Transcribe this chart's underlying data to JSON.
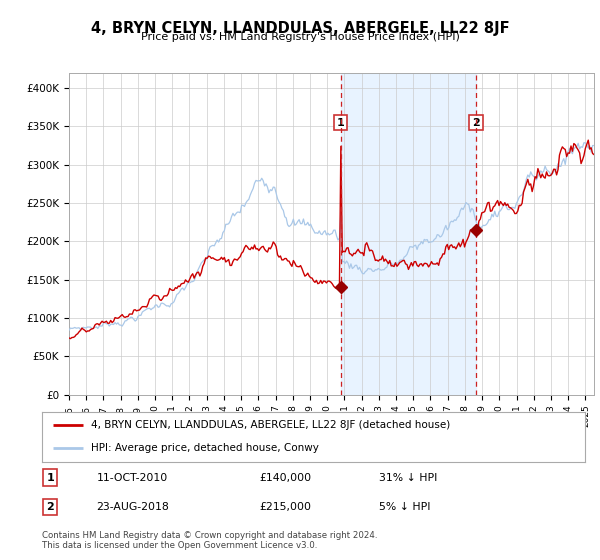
{
  "title": "4, BRYN CELYN, LLANDDULAS, ABERGELE, LL22 8JF",
  "subtitle": "Price paid vs. HM Land Registry's House Price Index (HPI)",
  "ylim": [
    0,
    420000
  ],
  "yticks": [
    0,
    50000,
    100000,
    150000,
    200000,
    250000,
    300000,
    350000,
    400000
  ],
  "ytick_labels": [
    "£0",
    "£50K",
    "£100K",
    "£150K",
    "£200K",
    "£250K",
    "£300K",
    "£350K",
    "£400K"
  ],
  "hpi_color": "#aac8e8",
  "price_color": "#cc0000",
  "marker_color": "#990000",
  "vline_color": "#cc2222",
  "shade_color": "#ddeeff",
  "transaction1_date": 2010.78,
  "transaction1_price": 140000,
  "transaction2_date": 2018.64,
  "transaction2_price": 215000,
  "legend_price_label": "4, BRYN CELYN, LLANDDULAS, ABERGELE, LL22 8JF (detached house)",
  "legend_hpi_label": "HPI: Average price, detached house, Conwy",
  "table_row1": [
    "1",
    "11-OCT-2010",
    "£140,000",
    "31% ↓ HPI"
  ],
  "table_row2": [
    "2",
    "23-AUG-2018",
    "£215,000",
    "5% ↓ HPI"
  ],
  "footnote1": "Contains HM Land Registry data © Crown copyright and database right 2024.",
  "footnote2": "This data is licensed under the Open Government Licence v3.0.",
  "background_color": "#ffffff",
  "grid_color": "#cccccc",
  "start_year": 1995.0,
  "end_year": 2025.5
}
